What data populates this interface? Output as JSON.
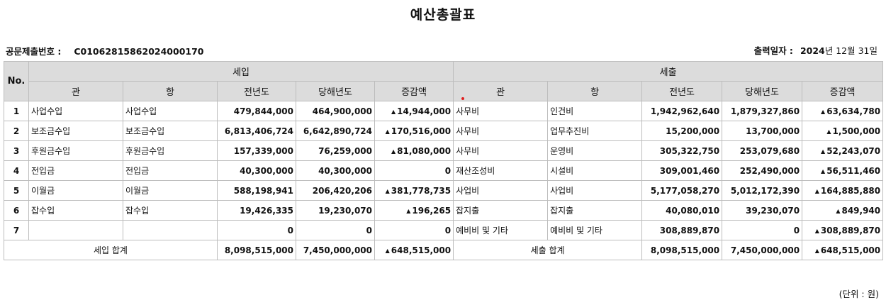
{
  "title": "예산총괄표",
  "doc_no": {
    "label": "공문제출번호 :",
    "value": "C01062815862024000170"
  },
  "print_date": {
    "label": "출력일자 :",
    "year": "2024",
    "rest": "년 12월 31일"
  },
  "headers": {
    "no": "No.",
    "income_group": "세입",
    "expense_group": "세출",
    "gwan": "관",
    "hang": "항",
    "prev": "전년도",
    "curr": "당해년도",
    "diff": "증감액"
  },
  "rows": [
    {
      "no": "1",
      "in_gwan": "사업수입",
      "in_hang": "사업수입",
      "in_prev": "479,844,000",
      "in_curr": "464,900,000",
      "in_diff": "14,944,000",
      "ex_gwan": "사무비",
      "ex_hang": "인건비",
      "ex_prev": "1,942,962,640",
      "ex_curr": "1,879,327,860",
      "ex_diff": "63,634,780"
    },
    {
      "no": "2",
      "in_gwan": "보조금수입",
      "in_hang": "보조금수입",
      "in_prev": "6,813,406,724",
      "in_curr": "6,642,890,724",
      "in_diff": "170,516,000",
      "ex_gwan": "사무비",
      "ex_hang": "업무추진비",
      "ex_prev": "15,200,000",
      "ex_curr": "13,700,000",
      "ex_diff": "1,500,000"
    },
    {
      "no": "3",
      "in_gwan": "후원금수입",
      "in_hang": "후원금수입",
      "in_prev": "157,339,000",
      "in_curr": "76,259,000",
      "in_diff": "81,080,000",
      "ex_gwan": "사무비",
      "ex_hang": "운영비",
      "ex_prev": "305,322,750",
      "ex_curr": "253,079,680",
      "ex_diff": "52,243,070"
    },
    {
      "no": "4",
      "in_gwan": "전입금",
      "in_hang": "전입금",
      "in_prev": "40,300,000",
      "in_curr": "40,300,000",
      "in_diff": "0",
      "ex_gwan": "재산조성비",
      "ex_hang": "시설비",
      "ex_prev": "309,001,460",
      "ex_curr": "252,490,000",
      "ex_diff": "56,511,460"
    },
    {
      "no": "5",
      "in_gwan": "이월금",
      "in_hang": "이월금",
      "in_prev": "588,198,941",
      "in_curr": "206,420,206",
      "in_diff": "381,778,735",
      "ex_gwan": "사업비",
      "ex_hang": "사업비",
      "ex_prev": "5,177,058,270",
      "ex_curr": "5,012,172,390",
      "ex_diff": "164,885,880"
    },
    {
      "no": "6",
      "in_gwan": "잡수입",
      "in_hang": "잡수입",
      "in_prev": "19,426,335",
      "in_curr": "19,230,070",
      "in_diff": "196,265",
      "ex_gwan": "잡지출",
      "ex_hang": "잡지출",
      "ex_prev": "40,080,010",
      "ex_curr": "39,230,070",
      "ex_diff": "849,940"
    },
    {
      "no": "7",
      "in_gwan": "",
      "in_hang": "",
      "in_prev": "0",
      "in_curr": "0",
      "in_diff": "0",
      "ex_gwan": "예비비 및 기타",
      "ex_hang": "예비비 및 기타",
      "ex_prev": "308,889,870",
      "ex_curr": "0",
      "ex_diff": "308,889,870"
    }
  ],
  "totals": {
    "in_label": "세입 합계",
    "in_prev": "8,098,515,000",
    "in_curr": "7,450,000,000",
    "in_diff": "648,515,000",
    "ex_label": "세출 합계",
    "ex_prev": "8,098,515,000",
    "ex_curr": "7,450,000,000",
    "ex_diff": "648,515,000"
  },
  "up_marker": "▲",
  "unit_note": "(단위 : 원)"
}
